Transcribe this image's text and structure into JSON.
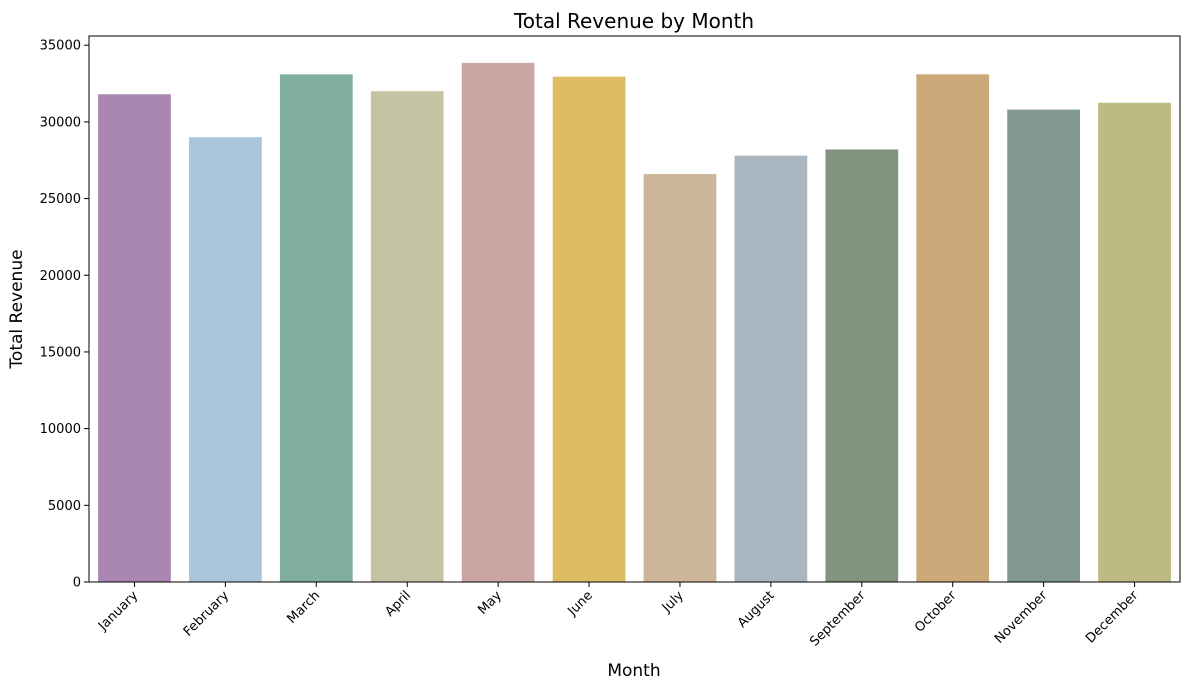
{
  "chart_data": {
    "type": "bar",
    "title": "Total Revenue by Month",
    "xlabel": "Month",
    "ylabel": "Total Revenue",
    "categories": [
      "January",
      "February",
      "March",
      "April",
      "May",
      "June",
      "July",
      "August",
      "September",
      "October",
      "November",
      "December"
    ],
    "values": [
      31800,
      29000,
      33100,
      32000,
      33850,
      32950,
      26600,
      27800,
      28200,
      33100,
      30800,
      31250
    ],
    "colors": [
      "#AA86B3",
      "#ABC6DB",
      "#7FAF9C",
      "#C4C3A4",
      "#CBA5A2",
      "#DDBD61",
      "#CDB69A",
      "#A9B5BF",
      "#7F967C",
      "#CBA978",
      "#809891",
      "#BEBA84"
    ],
    "ylim": [
      0,
      35600
    ],
    "yticks": [
      0,
      5000,
      10000,
      15000,
      20000,
      25000,
      30000,
      35000
    ],
    "grid": false,
    "legend": "none"
  }
}
